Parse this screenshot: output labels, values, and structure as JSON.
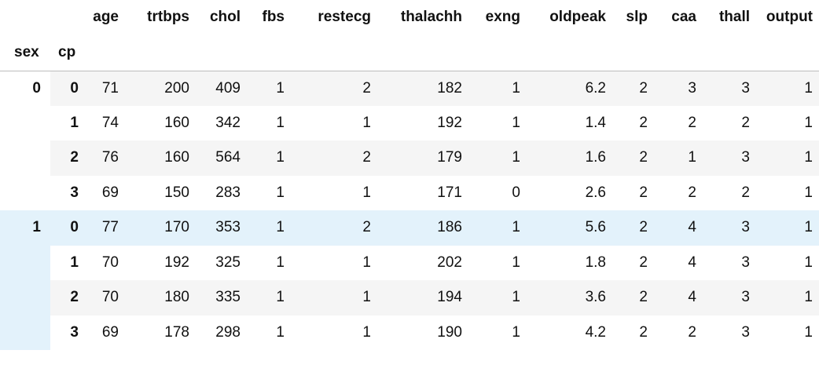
{
  "table": {
    "columns": [
      "age",
      "trtbps",
      "chol",
      "fbs",
      "restecg",
      "thalachh",
      "exng",
      "oldpeak",
      "slp",
      "caa",
      "thall",
      "output"
    ],
    "index_names": [
      "sex",
      "cp"
    ],
    "groups": [
      {
        "sex": "0",
        "rows": [
          {
            "cp": "0",
            "values": [
              "71",
              "200",
              "409",
              "1",
              "2",
              "182",
              "1",
              "6.2",
              "2",
              "3",
              "3",
              "1"
            ],
            "cut": "2"
          },
          {
            "cp": "1",
            "values": [
              "74",
              "160",
              "342",
              "1",
              "1",
              "192",
              "1",
              "1.4",
              "2",
              "2",
              "2",
              "1"
            ],
            "cut": "2"
          },
          {
            "cp": "2",
            "values": [
              "76",
              "160",
              "564",
              "1",
              "2",
              "179",
              "1",
              "1.6",
              "2",
              "1",
              "3",
              "1"
            ],
            "cut": "2"
          },
          {
            "cp": "3",
            "values": [
              "69",
              "150",
              "283",
              "1",
              "1",
              "171",
              "0",
              "2.6",
              "2",
              "2",
              "2",
              "1"
            ],
            "cut": "2"
          }
        ]
      },
      {
        "sex": "1",
        "rows": [
          {
            "cp": "0",
            "values": [
              "77",
              "170",
              "353",
              "1",
              "2",
              "186",
              "1",
              "5.6",
              "2",
              "4",
              "3",
              "1"
            ],
            "cut": "2"
          },
          {
            "cp": "1",
            "values": [
              "70",
              "192",
              "325",
              "1",
              "1",
              "202",
              "1",
              "1.8",
              "2",
              "4",
              "3",
              "1"
            ],
            "cut": ""
          },
          {
            "cp": "2",
            "values": [
              "70",
              "180",
              "335",
              "1",
              "1",
              "194",
              "1",
              "3.6",
              "2",
              "4",
              "3",
              "1"
            ],
            "cut": "2"
          },
          {
            "cp": "3",
            "values": [
              "69",
              "178",
              "298",
              "1",
              "1",
              "190",
              "1",
              "4.2",
              "2",
              "2",
              "3",
              "1"
            ],
            "cut": "2"
          }
        ]
      }
    ]
  },
  "colors": {
    "row_stripe": "#f5f5f5",
    "hover_highlight": "#e3f2fb",
    "header_border": "#bdbdbd"
  }
}
